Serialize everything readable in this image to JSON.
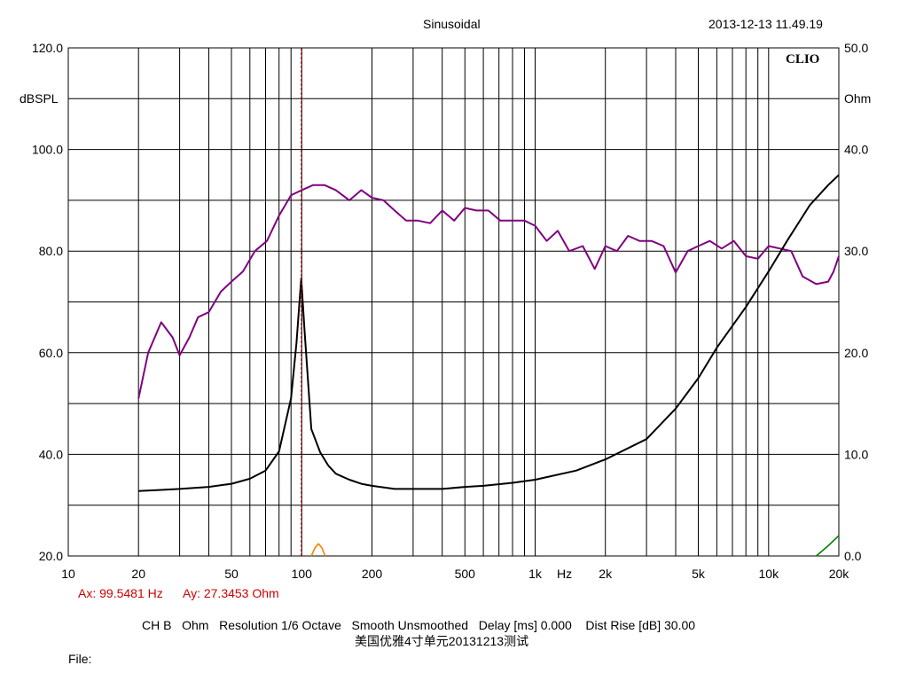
{
  "header": {
    "title": "Sinusoidal",
    "timestamp": "2013-12-13 11.49.19",
    "logo": "CLIO"
  },
  "cursor": {
    "ax": "Ax: 99.5481 Hz",
    "ay": "Ay: 27.3453 Ohm"
  },
  "footer": {
    "settings": "CH B   Ohm   Resolution 1/6 Octave   Smooth Unsmoothed   Delay [ms] 0.000    Dist Rise [dB] 30.00",
    "note": "美国优雅4寸单元20131213测试",
    "file_label": "File:"
  },
  "colors": {
    "spl": "#800080",
    "impedance": "#000000",
    "cursor": "#cc0000",
    "distortion_green": "#008000",
    "distortion_orange": "#ff8000"
  },
  "chart_data": {
    "type": "line",
    "title": "Sinusoidal",
    "x_scale": "log",
    "xlim": [
      10,
      20000
    ],
    "x_ticks": [
      {
        "v": 10,
        "label": "10"
      },
      {
        "v": 20,
        "label": "20"
      },
      {
        "v": 50,
        "label": "50"
      },
      {
        "v": 100,
        "label": "100"
      },
      {
        "v": 200,
        "label": "200"
      },
      {
        "v": 500,
        "label": "500"
      },
      {
        "v": 1000,
        "label": "1k"
      },
      {
        "v": 2000,
        "label": "2k"
      },
      {
        "v": 5000,
        "label": "5k"
      },
      {
        "v": 10000,
        "label": "10k"
      },
      {
        "v": 20000,
        "label": "20k"
      }
    ],
    "x_unit": "Hz",
    "y_left": {
      "label": "dBSPL",
      "lim": [
        20,
        120
      ],
      "ticks": [
        {
          "v": 20,
          "label": "20.0"
        },
        {
          "v": 40,
          "label": "40.0"
        },
        {
          "v": 60,
          "label": "60.0"
        },
        {
          "v": 80,
          "label": "80.0"
        },
        {
          "v": 100,
          "label": "100.0"
        },
        {
          "v": 120,
          "label": "120.0"
        }
      ]
    },
    "y_right": {
      "label": "Ohm",
      "lim": [
        0,
        50
      ],
      "ticks": [
        {
          "v": 0,
          "label": "0.0"
        },
        {
          "v": 10,
          "label": "10.0"
        },
        {
          "v": 20,
          "label": "20.0"
        },
        {
          "v": 30,
          "label": "30.0"
        },
        {
          "v": 40,
          "label": "40.0"
        },
        {
          "v": 50,
          "label": "50.0"
        }
      ]
    },
    "grid": true,
    "cursor_x": 99.5481,
    "series": [
      {
        "axis": "left",
        "color": "#800080",
        "x": [
          20,
          22,
          25,
          28,
          30,
          33,
          36,
          40,
          45,
          50,
          56,
          63,
          71,
          80,
          90,
          100,
          112,
          125,
          140,
          160,
          180,
          200,
          224,
          250,
          280,
          315,
          355,
          400,
          450,
          500,
          560,
          630,
          710,
          800,
          900,
          1000,
          1120,
          1250,
          1400,
          1600,
          1800,
          2000,
          2240,
          2500,
          2800,
          3150,
          3550,
          4000,
          4500,
          5000,
          5600,
          6300,
          7100,
          8000,
          9000,
          10000,
          11200,
          12500,
          14000,
          16000,
          18000,
          19000,
          20000
        ],
        "y": [
          51,
          60,
          66,
          63,
          59.5,
          63,
          67,
          68,
          72,
          74,
          76,
          80,
          82,
          87,
          91,
          92,
          93,
          93,
          92,
          90,
          92,
          90.5,
          90,
          88,
          86,
          86,
          85.5,
          88,
          86,
          88.5,
          88,
          88,
          86,
          86,
          86,
          85,
          82,
          84,
          80,
          81,
          76.5,
          81,
          80,
          83,
          82,
          82,
          81,
          75.8,
          80,
          81,
          82,
          80.5,
          82,
          79,
          78.5,
          81,
          80.5,
          80,
          75,
          73.5,
          74,
          76,
          79
        ]
      },
      {
        "axis": "right",
        "color": "#000000",
        "x": [
          20,
          25,
          30,
          40,
          50,
          60,
          70,
          80,
          90,
          95,
          99.5,
          103,
          110,
          120,
          130,
          140,
          160,
          180,
          200,
          250,
          300,
          400,
          500,
          600,
          800,
          1000,
          1500,
          2000,
          3000,
          4000,
          5000,
          6000,
          8000,
          10000,
          12000,
          15000,
          18000,
          20000
        ],
        "y": [
          6.4,
          6.5,
          6.6,
          6.8,
          7.1,
          7.6,
          8.4,
          10.3,
          15.5,
          21,
          27.3,
          22,
          12.5,
          10.2,
          8.9,
          8.1,
          7.5,
          7.1,
          6.9,
          6.6,
          6.6,
          6.6,
          6.8,
          6.9,
          7.2,
          7.5,
          8.4,
          9.5,
          11.5,
          14.5,
          17.5,
          20.5,
          24.5,
          28,
          31,
          34.5,
          36.5,
          37.5
        ]
      },
      {
        "axis": "right",
        "color": "#008000",
        "x": [
          16000,
          18000,
          20000
        ],
        "y": [
          0,
          1.0,
          2.0
        ]
      },
      {
        "axis": "right",
        "color": "#ff8000",
        "x": [
          110,
          114,
          118,
          122,
          126
        ],
        "y": [
          0,
          0.8,
          1.2,
          0.8,
          0
        ]
      }
    ]
  }
}
